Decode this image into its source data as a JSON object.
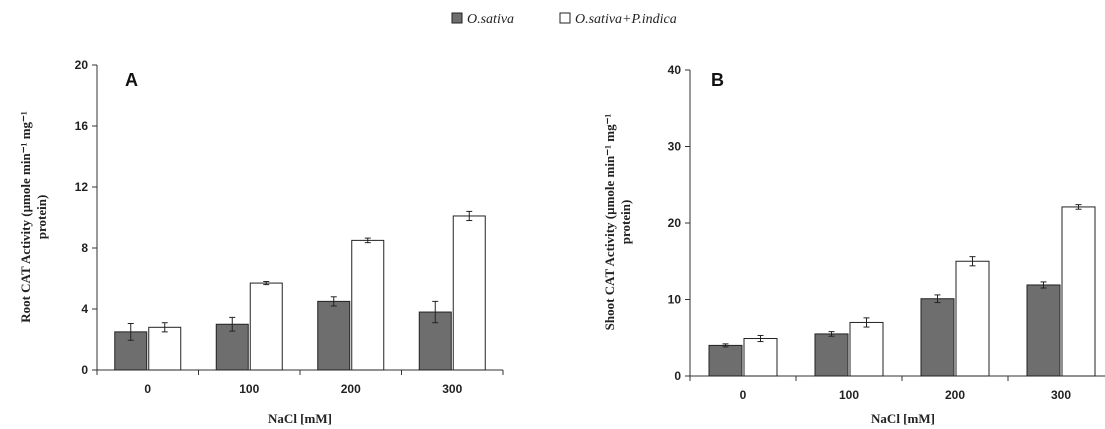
{
  "legend": {
    "series": [
      {
        "name": "O.sativa",
        "color": "#6e6e6e"
      },
      {
        "name": "O.sativa+P.indica",
        "color": "#ffffff"
      }
    ]
  },
  "chart_data": [
    {
      "type": "bar",
      "panel_label": "A",
      "categories": [
        "0",
        "100",
        "200",
        "300"
      ],
      "series": [
        {
          "name": "O.sativa",
          "values": [
            2.5,
            3.0,
            4.5,
            3.8
          ],
          "errors": [
            0.55,
            0.45,
            0.3,
            0.7
          ]
        },
        {
          "name": "O.sativa+P.indica",
          "values": [
            2.8,
            5.7,
            8.5,
            10.1
          ],
          "errors": [
            0.3,
            0.1,
            0.15,
            0.3
          ]
        }
      ],
      "xlabel": "NaCl [mM]",
      "ylabel_lines": [
        "Root CAT Activity (µmole min⁻¹ mg⁻¹",
        "protein)"
      ],
      "ylim": [
        0,
        20
      ],
      "yticks": [
        0,
        4,
        8,
        12,
        16,
        20
      ]
    },
    {
      "type": "bar",
      "panel_label": "B",
      "categories": [
        "0",
        "100",
        "200",
        "300"
      ],
      "series": [
        {
          "name": "O.sativa",
          "values": [
            4.0,
            5.5,
            10.1,
            11.9
          ],
          "errors": [
            0.2,
            0.3,
            0.5,
            0.4
          ]
        },
        {
          "name": "O.sativa+P.indica",
          "values": [
            4.9,
            7.0,
            15.0,
            22.1
          ],
          "errors": [
            0.4,
            0.6,
            0.6,
            0.3
          ]
        }
      ],
      "xlabel": "NaCl [mM]",
      "ylabel_lines": [
        "Shoot CAT Activity (µmole min⁻¹ mg⁻¹",
        "protein)"
      ],
      "ylim": [
        0,
        40
      ],
      "yticks": [
        0,
        10,
        20,
        30,
        40
      ]
    }
  ]
}
